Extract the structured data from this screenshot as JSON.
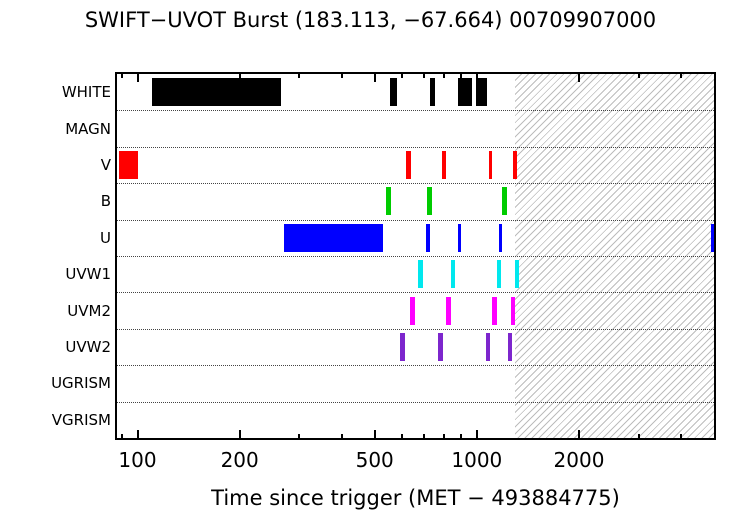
{
  "chart_data": {
    "type": "interval-timeline",
    "title": "SWIFT−UVOT Burst (183.113, −67.664) 00709907000",
    "xlabel": "Time since trigger (MET − 493884775)",
    "x_scale": "log",
    "xlim": [
      87,
      5000
    ],
    "x_major_ticks": [
      100,
      200,
      500,
      1000,
      2000
    ],
    "x_minor_ticks": [
      90,
      300,
      400,
      600,
      700,
      800,
      900,
      3000,
      4000
    ],
    "hatch_region": [
      1300,
      5000
    ],
    "grid": "dotted-row-separators",
    "rows": [
      {
        "label": "WHITE",
        "color": "#000000",
        "intervals": [
          [
            110,
            265
          ],
          [
            555,
            580
          ],
          [
            730,
            755
          ],
          [
            880,
            965
          ],
          [
            995,
            1075
          ]
        ]
      },
      {
        "label": "MAGN",
        "color": "#000000",
        "intervals": []
      },
      {
        "label": "V",
        "color": "#ff0000",
        "intervals": [
          [
            88,
            100
          ],
          [
            620,
            640
          ],
          [
            790,
            810
          ],
          [
            1085,
            1112
          ],
          [
            1280,
            1310
          ]
        ]
      },
      {
        "label": "B",
        "color": "#00cc00",
        "intervals": [
          [
            540,
            557
          ],
          [
            715,
            738
          ],
          [
            1190,
            1225
          ]
        ]
      },
      {
        "label": "U",
        "color": "#0000ff",
        "intervals": [
          [
            270,
            530
          ],
          [
            710,
            730
          ],
          [
            878,
            900
          ],
          [
            1160,
            1190
          ],
          [
            4900,
            5000
          ]
        ]
      },
      {
        "label": "UVW1",
        "color": "#00e8ee",
        "intervals": [
          [
            670,
            695
          ],
          [
            840,
            862
          ],
          [
            1148,
            1178
          ],
          [
            1295,
            1335
          ]
        ]
      },
      {
        "label": "UVM2",
        "color": "#ff00ff",
        "intervals": [
          [
            635,
            658
          ],
          [
            810,
            840
          ],
          [
            1108,
            1145
          ],
          [
            1260,
            1300
          ]
        ]
      },
      {
        "label": "UVW2",
        "color": "#7d26cd",
        "intervals": [
          [
            595,
            615
          ],
          [
            768,
            793
          ],
          [
            1063,
            1090
          ],
          [
            1235,
            1268
          ]
        ]
      },
      {
        "label": "UGRISM",
        "color": "#000000",
        "intervals": []
      },
      {
        "label": "VGRISM",
        "color": "#000000",
        "intervals": []
      }
    ]
  }
}
